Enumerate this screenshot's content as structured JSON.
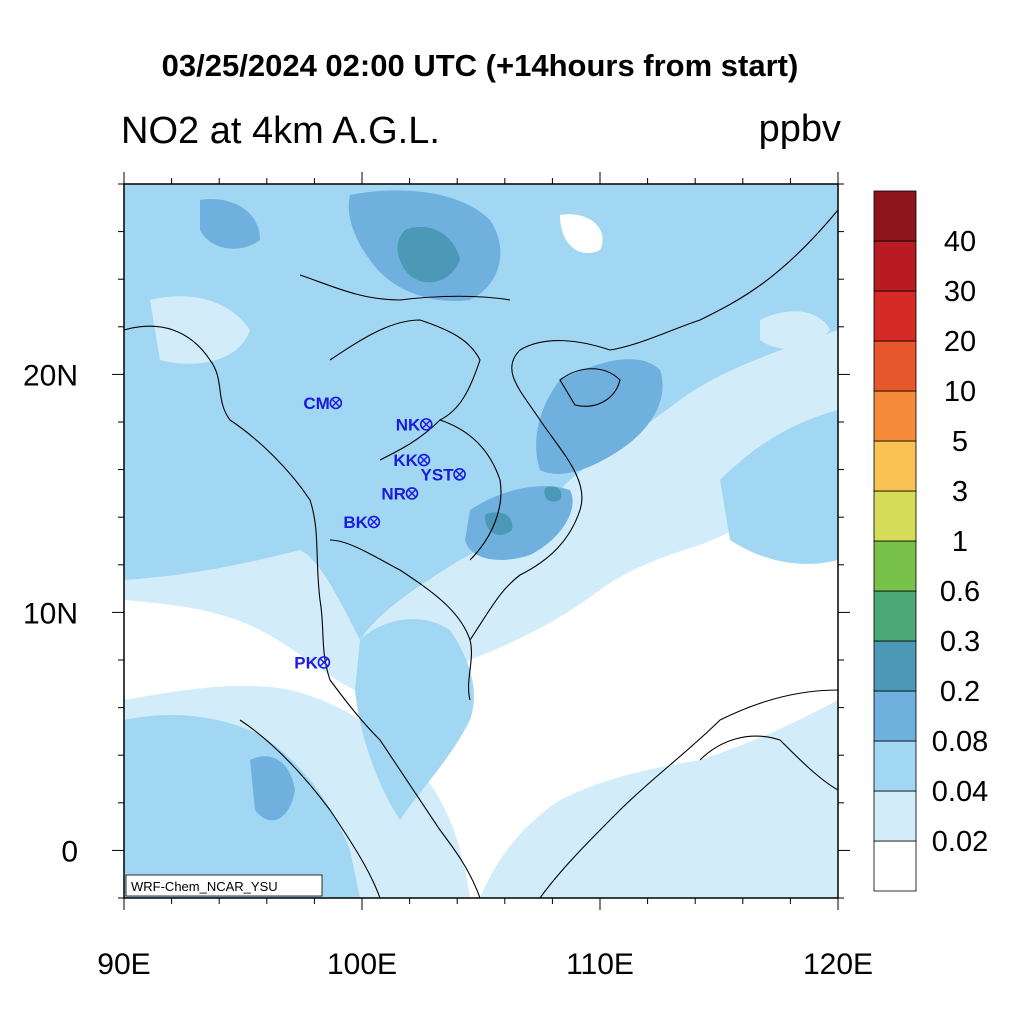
{
  "header": {
    "title": "03/25/2024 02:00 UTC (+14hours from start)",
    "left_label": "NO2 at 4km A.G.L.",
    "units": "ppbv"
  },
  "map": {
    "lon_range": [
      90,
      120
    ],
    "lat_range": [
      -2,
      28
    ],
    "x_ticks": [
      {
        "lon": 90,
        "label": "90E"
      },
      {
        "lon": 100,
        "label": "100E"
      },
      {
        "lon": 110,
        "label": "110E"
      },
      {
        "lon": 120,
        "label": "120E"
      }
    ],
    "y_ticks": [
      {
        "lat": 0,
        "label": "0"
      },
      {
        "lat": 10,
        "label": "10N"
      },
      {
        "lat": 20,
        "label": "20N"
      }
    ],
    "stations": [
      {
        "code": "CM",
        "lon": 98.9,
        "lat": 18.8
      },
      {
        "code": "NK",
        "lon": 102.7,
        "lat": 17.9
      },
      {
        "code": "KK",
        "lon": 102.6,
        "lat": 16.4
      },
      {
        "code": "YST",
        "lon": 104.1,
        "lat": 15.8
      },
      {
        "code": "NR",
        "lon": 102.1,
        "lat": 15.0
      },
      {
        "code": "BK",
        "lon": 100.5,
        "lat": 13.8
      },
      {
        "code": "PK",
        "lon": 98.4,
        "lat": 7.9
      }
    ],
    "credit": "WRF-Chem_NCAR_YSU"
  },
  "colorbar": {
    "bins": [
      {
        "color": "#ffffff"
      },
      {
        "color": "#d3ecfa"
      },
      {
        "color": "#a2d7f4"
      },
      {
        "color": "#6fb0df"
      },
      {
        "color": "#4b98b7"
      },
      {
        "color": "#4ba776"
      },
      {
        "color": "#78c24c"
      },
      {
        "color": "#d4dc58"
      },
      {
        "color": "#f8c254"
      },
      {
        "color": "#f48a3a"
      },
      {
        "color": "#e8562c"
      },
      {
        "color": "#d62a26"
      },
      {
        "color": "#b81c22"
      },
      {
        "color": "#8e161b"
      }
    ],
    "labels": [
      "0.02",
      "0.04",
      "0.08",
      "0.2",
      "0.3",
      "0.6",
      "1",
      "3",
      "5",
      "10",
      "20",
      "30",
      "40"
    ]
  }
}
